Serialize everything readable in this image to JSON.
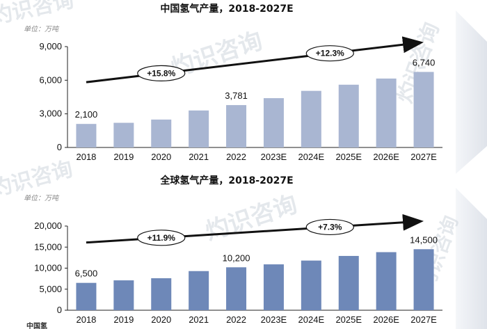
{
  "chart_data": [
    {
      "type": "bar",
      "title": "中国氢气产量，2018-2027E",
      "unit": "单位：万吨",
      "categories": [
        "2018",
        "2019",
        "2020",
        "2021",
        "2022",
        "2023E",
        "2024E",
        "2025E",
        "2026E",
        "2027E"
      ],
      "values": [
        2100,
        2200,
        2490,
        3300,
        3781,
        4400,
        5050,
        5600,
        6150,
        6740
      ],
      "data_labels": [
        {
          "index": 0,
          "text": "2,100"
        },
        {
          "index": 4,
          "text": "3,781"
        },
        {
          "index": 9,
          "text": "6,740"
        }
      ],
      "ylim": [
        0,
        9000
      ],
      "yticks": [
        0,
        3000,
        6000,
        9000
      ],
      "ytick_labels": [
        "0",
        "3,000",
        "6,000",
        "9,000"
      ],
      "color": "#a9b6d2",
      "grid": false,
      "annotations": [
        {
          "text": "+15.8%",
          "from_index": 0,
          "to_index": 4
        },
        {
          "text": "+12.3%",
          "from_index": 4,
          "to_index": 9
        }
      ]
    },
    {
      "type": "bar",
      "title": "全球氢气产量，2018-2027E",
      "unit": "单位：万吨",
      "categories": [
        "2018",
        "2019",
        "2020",
        "2021",
        "2022",
        "2023E",
        "2024E",
        "2025E",
        "2026E",
        "2027E"
      ],
      "values": [
        6500,
        7100,
        7600,
        9300,
        10200,
        10900,
        11800,
        12900,
        13800,
        14500
      ],
      "data_labels": [
        {
          "index": 0,
          "text": "6,500"
        },
        {
          "index": 4,
          "text": "10,200"
        },
        {
          "index": 9,
          "text": "14,500"
        }
      ],
      "ylim": [
        0,
        20000
      ],
      "yticks": [
        0,
        5000,
        10000,
        15000,
        20000
      ],
      "ytick_labels": [
        "0",
        "5,000",
        "10,000",
        "15,000",
        "20,000"
      ],
      "color": "#6e88b8",
      "grid": false,
      "annotations": [
        {
          "text": "+11.9%",
          "from_index": 0,
          "to_index": 4
        },
        {
          "text": "+7.3%",
          "from_index": 4,
          "to_index": 9
        }
      ]
    }
  ],
  "footer": {
    "text": "中国氢"
  },
  "watermarks": [
    "灼识咨询",
    "灼识咨询",
    "灼识咨询",
    "灼识咨询",
    "灼识咨询",
    "灼识咨询"
  ],
  "watermark_color": "#cfd6dd",
  "accent_colors": {
    "arrow": "#111111",
    "side_arrow": "#dfe3ea"
  }
}
